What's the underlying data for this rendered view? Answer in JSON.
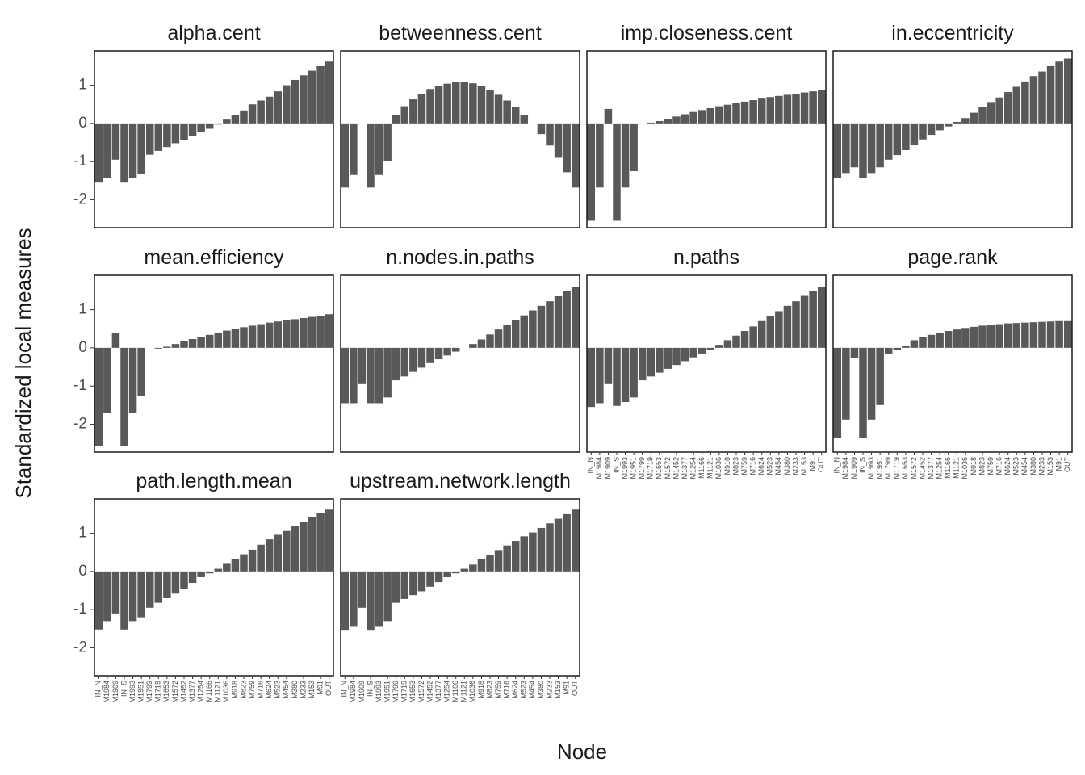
{
  "y_label": "Standardized local measures",
  "x_label": "Node",
  "categories": [
    "IN_N",
    "M1984",
    "M1909",
    "IN_S",
    "M1993",
    "M1951",
    "M1799",
    "M1719",
    "M1653",
    "M1572",
    "M1452",
    "M1377",
    "M1254",
    "M1166",
    "M1121",
    "M1036",
    "M918",
    "M823",
    "M759",
    "M716",
    "M624",
    "M523",
    "M454",
    "M380",
    "M233",
    "M153",
    "M91",
    "OUT"
  ],
  "ylim": [
    -2.73,
    1.9
  ],
  "yticks": [
    -2,
    -1,
    0,
    1
  ],
  "chart_data": [
    {
      "type": "bar",
      "title": "alpha.cent",
      "color": "#595959",
      "values": [
        -1.55,
        -1.42,
        -0.95,
        -1.55,
        -1.42,
        -1.32,
        -0.82,
        -0.72,
        -0.62,
        -0.52,
        -0.43,
        -0.33,
        -0.23,
        -0.14,
        -0.03,
        0.1,
        0.22,
        0.34,
        0.5,
        0.6,
        0.7,
        0.84,
        1.0,
        1.14,
        1.26,
        1.38,
        1.5,
        1.62
      ]
    },
    {
      "type": "bar",
      "title": "betweenness.cent",
      "color": "#595959",
      "values": [
        -1.68,
        -1.35,
        0,
        -1.68,
        -1.35,
        -0.98,
        0.22,
        0.45,
        0.63,
        0.78,
        0.9,
        0.98,
        1.04,
        1.08,
        1.08,
        1.05,
        0.98,
        0.88,
        0.75,
        0.6,
        0.42,
        0.22,
        0,
        -0.28,
        -0.58,
        -0.9,
        -1.28,
        -1.68
      ]
    },
    {
      "type": "bar",
      "title": "imp.closeness.cent",
      "color": "#595959",
      "values": [
        -2.55,
        -1.68,
        0.38,
        -2.55,
        -1.68,
        -1.25,
        0,
        0.02,
        0.06,
        0.12,
        0.18,
        0.24,
        0.3,
        0.35,
        0.4,
        0.45,
        0.49,
        0.53,
        0.57,
        0.61,
        0.65,
        0.69,
        0.72,
        0.75,
        0.78,
        0.81,
        0.84,
        0.87
      ]
    },
    {
      "type": "bar",
      "title": "in.eccentricity",
      "color": "#595959",
      "values": [
        -1.42,
        -1.3,
        -1.15,
        -1.42,
        -1.3,
        -1.15,
        -0.95,
        -0.83,
        -0.7,
        -0.56,
        -0.42,
        -0.3,
        -0.18,
        -0.08,
        0.04,
        0.14,
        0.28,
        0.42,
        0.56,
        0.68,
        0.82,
        0.96,
        1.1,
        1.24,
        1.36,
        1.5,
        1.62,
        1.7
      ]
    },
    {
      "type": "bar",
      "title": "mean.efficiency",
      "color": "#595959",
      "values": [
        -2.58,
        -1.7,
        0.38,
        -2.58,
        -1.7,
        -1.25,
        0,
        -0.02,
        0.03,
        0.1,
        0.17,
        0.23,
        0.29,
        0.34,
        0.4,
        0.45,
        0.5,
        0.54,
        0.58,
        0.62,
        0.66,
        0.69,
        0.72,
        0.75,
        0.78,
        0.81,
        0.84,
        0.88
      ]
    },
    {
      "type": "bar",
      "title": "n.nodes.in.paths",
      "color": "#595959",
      "values": [
        -1.45,
        -1.45,
        -0.95,
        -1.45,
        -1.45,
        -1.3,
        -0.85,
        -0.75,
        -0.63,
        -0.52,
        -0.4,
        -0.3,
        -0.2,
        -0.1,
        0,
        0.1,
        0.22,
        0.35,
        0.48,
        0.6,
        0.72,
        0.85,
        0.98,
        1.1,
        1.22,
        1.35,
        1.48,
        1.6
      ]
    },
    {
      "type": "bar",
      "title": "n.paths",
      "color": "#595959",
      "values": [
        -1.55,
        -1.45,
        -0.95,
        -1.52,
        -1.42,
        -1.3,
        -0.85,
        -0.75,
        -0.65,
        -0.55,
        -0.45,
        -0.35,
        -0.25,
        -0.15,
        -0.05,
        0.08,
        0.2,
        0.32,
        0.44,
        0.56,
        0.7,
        0.84,
        0.96,
        1.1,
        1.22,
        1.36,
        1.48,
        1.6
      ]
    },
    {
      "type": "bar",
      "title": "page.rank",
      "color": "#595959",
      "values": [
        -2.35,
        -1.88,
        -0.27,
        -2.35,
        -1.88,
        -1.5,
        -0.15,
        -0.05,
        0.05,
        0.2,
        0.28,
        0.34,
        0.4,
        0.44,
        0.48,
        0.52,
        0.55,
        0.58,
        0.6,
        0.62,
        0.64,
        0.65,
        0.66,
        0.67,
        0.68,
        0.69,
        0.7,
        0.7
      ]
    },
    {
      "type": "bar",
      "title": "path.length.mean",
      "color": "#595959",
      "values": [
        -1.52,
        -1.3,
        -1.1,
        -1.52,
        -1.3,
        -1.2,
        -0.95,
        -0.82,
        -0.7,
        -0.58,
        -0.45,
        -0.3,
        -0.15,
        -0.05,
        0.07,
        0.2,
        0.33,
        0.45,
        0.57,
        0.7,
        0.84,
        0.96,
        1.06,
        1.18,
        1.3,
        1.42,
        1.52,
        1.62
      ]
    },
    {
      "type": "bar",
      "title": "upstream.network.length",
      "color": "#595959",
      "values": [
        -1.55,
        -1.45,
        -0.95,
        -1.55,
        -1.45,
        -1.3,
        -0.82,
        -0.72,
        -0.62,
        -0.52,
        -0.4,
        -0.28,
        -0.15,
        -0.05,
        0.07,
        0.18,
        0.32,
        0.44,
        0.56,
        0.68,
        0.8,
        0.92,
        1.02,
        1.14,
        1.26,
        1.38,
        1.5,
        1.62
      ]
    }
  ]
}
